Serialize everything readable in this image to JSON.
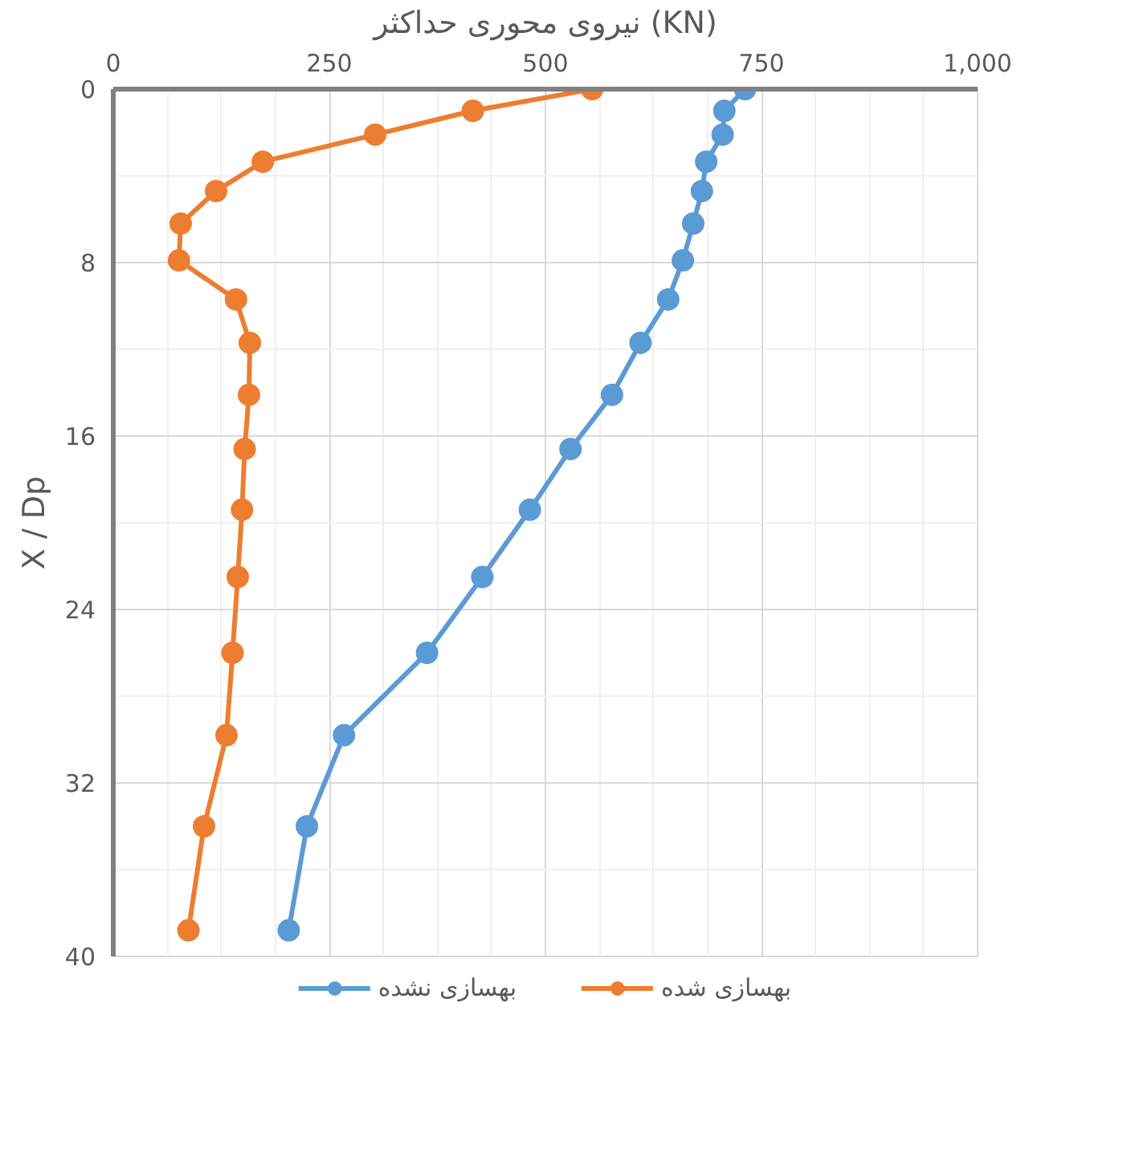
{
  "chart_data": {
    "type": "line",
    "xlabel": "نیروی محوری حداکثر (KN)",
    "ylabel": "X / Dp",
    "orientation": "horizontal",
    "x": [
      0,
      1.0,
      2.1,
      3.35,
      4.7,
      6.2,
      7.9,
      9.7,
      11.7,
      14.1,
      16.6,
      19.4,
      22.5,
      26.0,
      29.8,
      34.0,
      38.8
    ],
    "series": [
      {
        "name": "بهسازی نشده",
        "color": "#5b9bd5",
        "values": [
          731,
          707,
          705,
          686,
          681,
          671,
          659,
          642,
          610,
          577,
          529,
          482,
          427,
          363,
          267,
          224,
          203
        ]
      },
      {
        "name": "بهسازی شده",
        "color": "#ed7d31",
        "values": [
          554,
          416,
          303,
          173,
          119,
          78,
          76,
          142,
          158,
          157,
          152,
          149,
          144,
          138,
          131,
          105,
          87
        ]
      }
    ],
    "xlim": [
      0,
      1000
    ],
    "xticks": [
      0,
      250,
      500,
      750,
      {
        "value": 1000,
        "label": "1,000"
      }
    ],
    "ylim": [
      40,
      0
    ],
    "yticks": [
      0,
      8,
      16,
      24,
      32,
      40
    ],
    "grid": true,
    "legend": "bottom",
    "marker": "circle",
    "line_style": "solid"
  }
}
